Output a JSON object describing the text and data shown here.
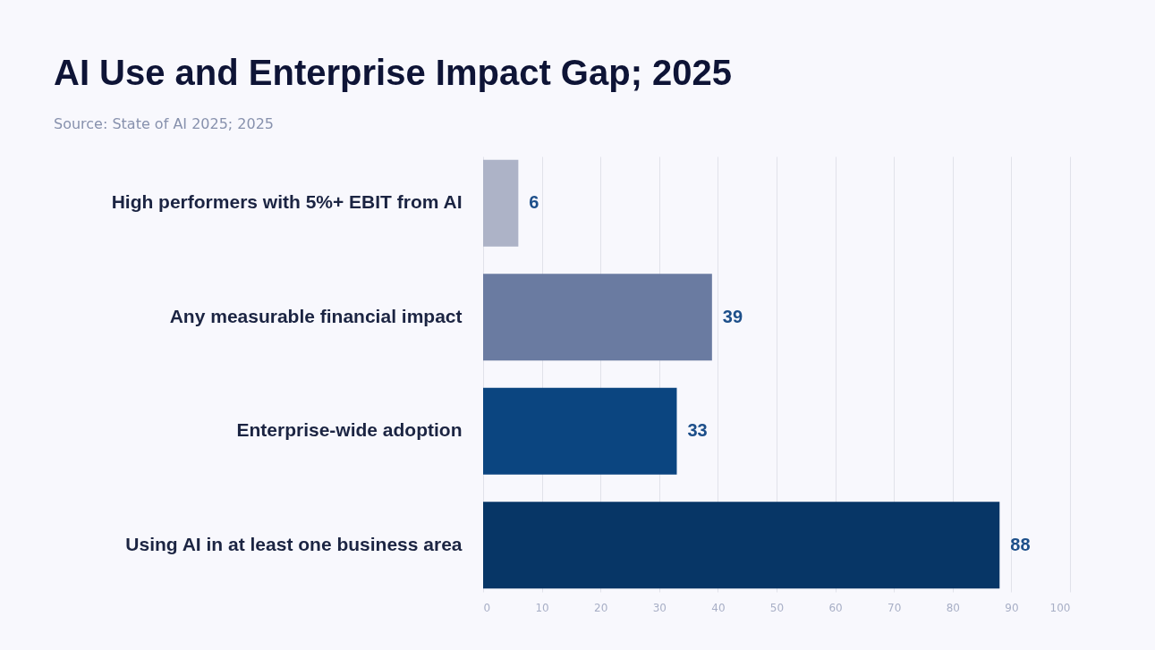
{
  "chart_data": {
    "type": "bar",
    "orientation": "horizontal",
    "title": "AI Use and Enterprise Impact Gap; 2025",
    "annotations": [
      "Source: State of AI 2025; 2025"
    ],
    "categories": [
      "High performers with 5%+ EBIT from AI",
      "Any measurable financial impact",
      "Enterprise-wide adoption",
      "Using AI in at least one business area"
    ],
    "values": [
      6,
      39,
      33,
      88
    ],
    "colors": [
      "#adb3c7",
      "#6a7ba1",
      "#0b4580",
      "#073666"
    ],
    "xlim": [
      0,
      100
    ],
    "xticks": [
      0,
      10,
      20,
      30,
      40,
      50,
      60,
      70,
      80,
      90,
      100
    ],
    "grid": "x",
    "data_labels": true
  }
}
